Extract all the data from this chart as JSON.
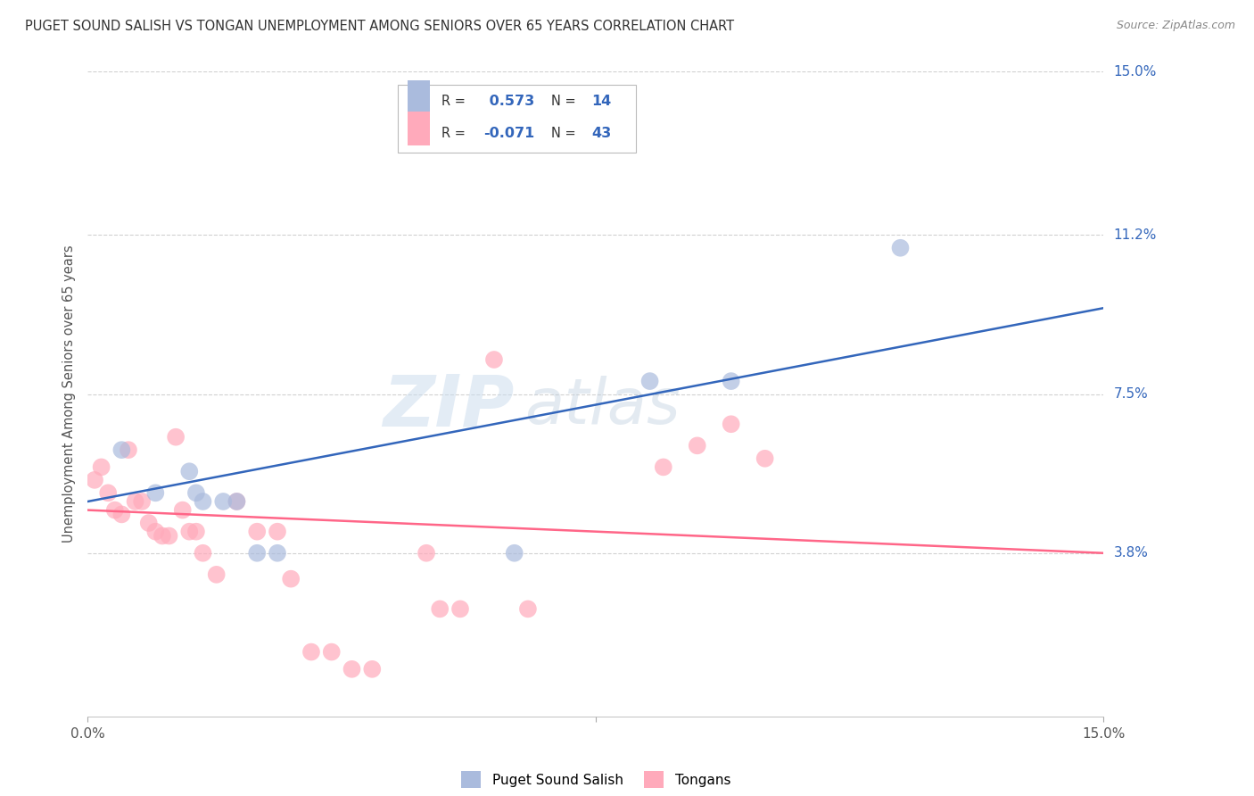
{
  "title": "PUGET SOUND SALISH VS TONGAN UNEMPLOYMENT AMONG SENIORS OVER 65 YEARS CORRELATION CHART",
  "source": "Source: ZipAtlas.com",
  "ylabel": "Unemployment Among Seniors over 65 years",
  "blue_color": "#aabbdd",
  "pink_color": "#ffaabb",
  "blue_line_color": "#3366bb",
  "pink_line_color": "#ff6688",
  "watermark_zip": "ZIP",
  "watermark_atlas": "atlas",
  "xmin": 0.0,
  "xmax": 0.15,
  "ymin": 0.0,
  "ymax": 0.15,
  "ytick_positions": [
    0.038,
    0.075,
    0.112,
    0.15
  ],
  "ytick_labels": [
    "3.8%",
    "7.5%",
    "11.2%",
    "15.0%"
  ],
  "legend1_R": " 0.573",
  "legend1_N": "14",
  "legend2_R": "-0.071",
  "legend2_N": "43",
  "blue_points_x": [
    0.005,
    0.01,
    0.015,
    0.016,
    0.017,
    0.02,
    0.022,
    0.025,
    0.028,
    0.063,
    0.083,
    0.095,
    0.12
  ],
  "blue_points_y": [
    0.062,
    0.052,
    0.057,
    0.052,
    0.05,
    0.05,
    0.05,
    0.038,
    0.038,
    0.038,
    0.078,
    0.078,
    0.109
  ],
  "pink_points_x": [
    0.001,
    0.002,
    0.003,
    0.004,
    0.005,
    0.006,
    0.007,
    0.008,
    0.009,
    0.01,
    0.011,
    0.012,
    0.013,
    0.014,
    0.015,
    0.016,
    0.017,
    0.019,
    0.022,
    0.025,
    0.028,
    0.03,
    0.033,
    0.036,
    0.039,
    0.042,
    0.05,
    0.052,
    0.055,
    0.06,
    0.065,
    0.085,
    0.09,
    0.095,
    0.1
  ],
  "pink_points_y": [
    0.055,
    0.058,
    0.052,
    0.048,
    0.047,
    0.062,
    0.05,
    0.05,
    0.045,
    0.043,
    0.042,
    0.042,
    0.065,
    0.048,
    0.043,
    0.043,
    0.038,
    0.033,
    0.05,
    0.043,
    0.043,
    0.032,
    0.015,
    0.015,
    0.011,
    0.011,
    0.038,
    0.025,
    0.025,
    0.083,
    0.025,
    0.058,
    0.063,
    0.068,
    0.06
  ],
  "blue_trend_y_start": 0.05,
  "blue_trend_y_end": 0.095,
  "pink_trend_y_start": 0.048,
  "pink_trend_y_end": 0.038
}
